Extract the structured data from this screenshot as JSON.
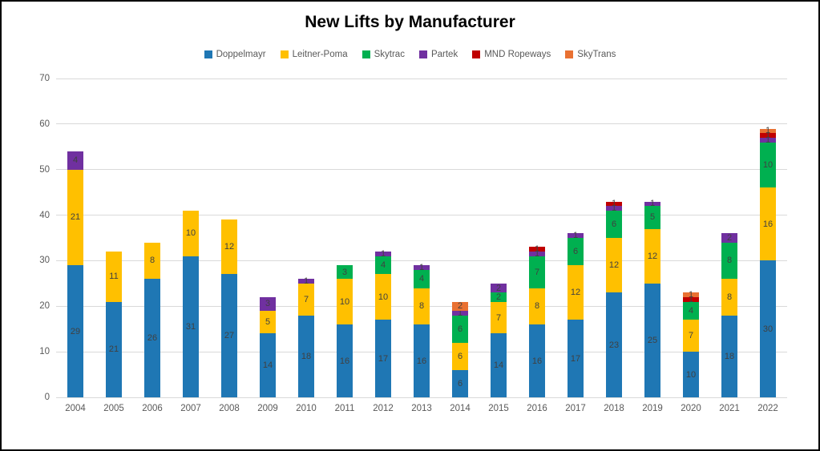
{
  "frame": {
    "title": "New Lifts by Manufacturer"
  },
  "axis": {
    "text_color": "#595959",
    "gridline_color": "#d9d9d9"
  },
  "chart_data": {
    "type": "bar",
    "stacked": true,
    "title": "New Lifts by Manufacturer",
    "xlabel": "",
    "ylabel": "",
    "ylim": [
      0,
      70
    ],
    "yticks": [
      0,
      10,
      20,
      30,
      40,
      50,
      60,
      70
    ],
    "grid": true,
    "legend_position": "top-center",
    "label_color": "#404040",
    "categories": [
      "2004",
      "2005",
      "2006",
      "2007",
      "2008",
      "2009",
      "2010",
      "2011",
      "2012",
      "2013",
      "2014",
      "2015",
      "2016",
      "2017",
      "2018",
      "2019",
      "2020",
      "2021",
      "2022"
    ],
    "series": [
      {
        "name": "Doppelmayr",
        "color": "#1f77b4",
        "values": [
          29,
          21,
          26,
          31,
          27,
          14,
          18,
          16,
          17,
          16,
          6,
          14,
          16,
          17,
          23,
          25,
          10,
          18,
          30
        ]
      },
      {
        "name": "Leitner-Poma",
        "color": "#ffc000",
        "values": [
          21,
          11,
          8,
          10,
          12,
          5,
          7,
          10,
          10,
          8,
          6,
          7,
          8,
          12,
          12,
          12,
          7,
          8,
          16
        ]
      },
      {
        "name": "Skytrac",
        "color": "#00b050",
        "values": [
          0,
          0,
          0,
          0,
          0,
          0,
          0,
          3,
          4,
          4,
          6,
          2,
          7,
          6,
          6,
          5,
          4,
          8,
          10
        ]
      },
      {
        "name": "Partek",
        "color": "#7030a0",
        "values": [
          4,
          0,
          0,
          0,
          0,
          3,
          1,
          0,
          1,
          1,
          1,
          2,
          1,
          1,
          1,
          1,
          0,
          2,
          1
        ]
      },
      {
        "name": "MND Ropeways",
        "color": "#c00000",
        "values": [
          0,
          0,
          0,
          0,
          0,
          0,
          0,
          0,
          0,
          0,
          0,
          0,
          1,
          0,
          1,
          0,
          1,
          0,
          1
        ]
      },
      {
        "name": "SkyTrans",
        "color": "#e97132",
        "values": [
          0,
          0,
          0,
          0,
          0,
          0,
          0,
          0,
          0,
          0,
          2,
          0,
          0,
          0,
          0,
          0,
          1,
          0,
          1
        ]
      }
    ],
    "totals": [
      54,
      32,
      34,
      41,
      39,
      22,
      26,
      29,
      32,
      29,
      21,
      25,
      33,
      36,
      43,
      43,
      23,
      36,
      59
    ]
  }
}
